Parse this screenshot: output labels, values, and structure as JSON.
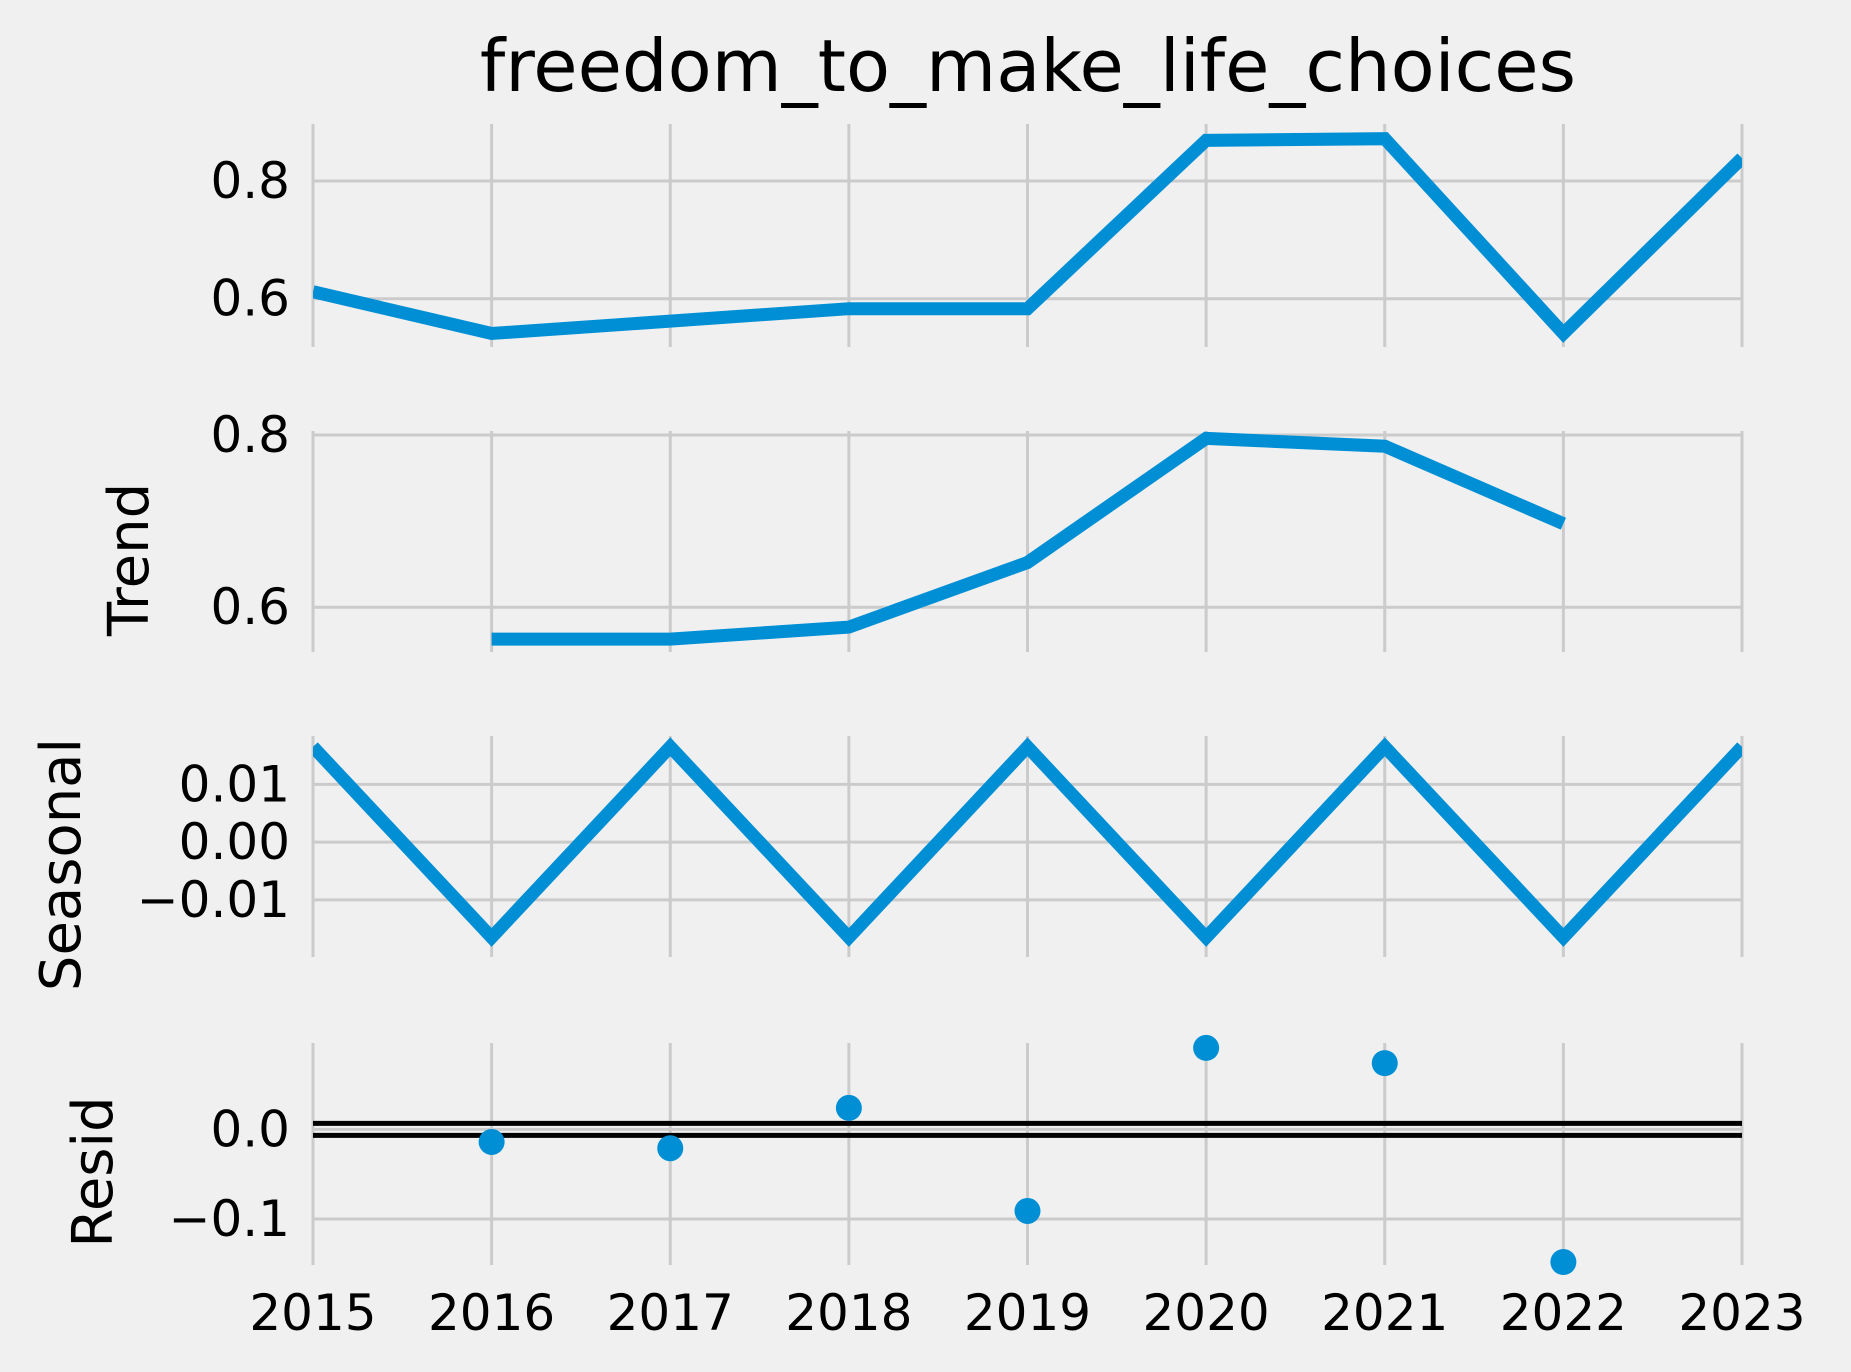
{
  "colors": {
    "background": "#f0f0f0",
    "grid": "#cbcbcb",
    "series": "#008fd5",
    "zero_line": "#000000"
  },
  "chart_data": {
    "type": "line",
    "title": "freedom_to_make_life_choices",
    "grid": true,
    "x": [
      "2015",
      "2016",
      "2017",
      "2018",
      "2019",
      "2020",
      "2021",
      "2022",
      "2023"
    ],
    "xlim": [
      2015,
      2023
    ],
    "panels": [
      {
        "key": "observed",
        "ylabel": "",
        "type": "line",
        "ylim": [
          0.535,
          0.885
        ],
        "yticks": [
          0.6,
          0.8
        ],
        "ytick_labels": [
          "0.6",
          "0.8"
        ],
        "values": [
          0.612,
          0.541,
          0.562,
          0.583,
          0.583,
          0.869,
          0.872,
          0.541,
          0.839
        ]
      },
      {
        "key": "trend",
        "ylabel": "Trend",
        "type": "line",
        "ylim": [
          0.555,
          0.8
        ],
        "yticks": [
          0.6,
          0.8
        ],
        "ytick_labels": [
          "0.6",
          "0.8"
        ],
        "values": [
          null,
          0.563,
          0.563,
          0.577,
          0.652,
          0.796,
          0.787,
          0.697,
          null
        ]
      },
      {
        "key": "seasonal",
        "ylabel": "Seasonal",
        "type": "line",
        "ylim": [
          -0.0185,
          0.0175
        ],
        "yticks": [
          0.01,
          0.0,
          -0.01
        ],
        "ytick_labels": [
          "0.01",
          "0.00",
          "−0.01"
        ],
        "values": [
          0.0165,
          -0.0165,
          0.0165,
          -0.0165,
          0.0165,
          -0.0165,
          0.0165,
          -0.0165,
          0.0165
        ]
      },
      {
        "key": "resid",
        "ylabel": "Resid",
        "type": "scatter",
        "ylim": [
          -0.148,
          0.092
        ],
        "yticks": [
          0.0,
          -0.1
        ],
        "ytick_labels": [
          "0.0",
          "−0.1"
        ],
        "zero_line": true,
        "values": [
          null,
          -0.014,
          -0.021,
          0.024,
          -0.091,
          0.091,
          0.074,
          -0.148,
          null
        ]
      }
    ]
  }
}
